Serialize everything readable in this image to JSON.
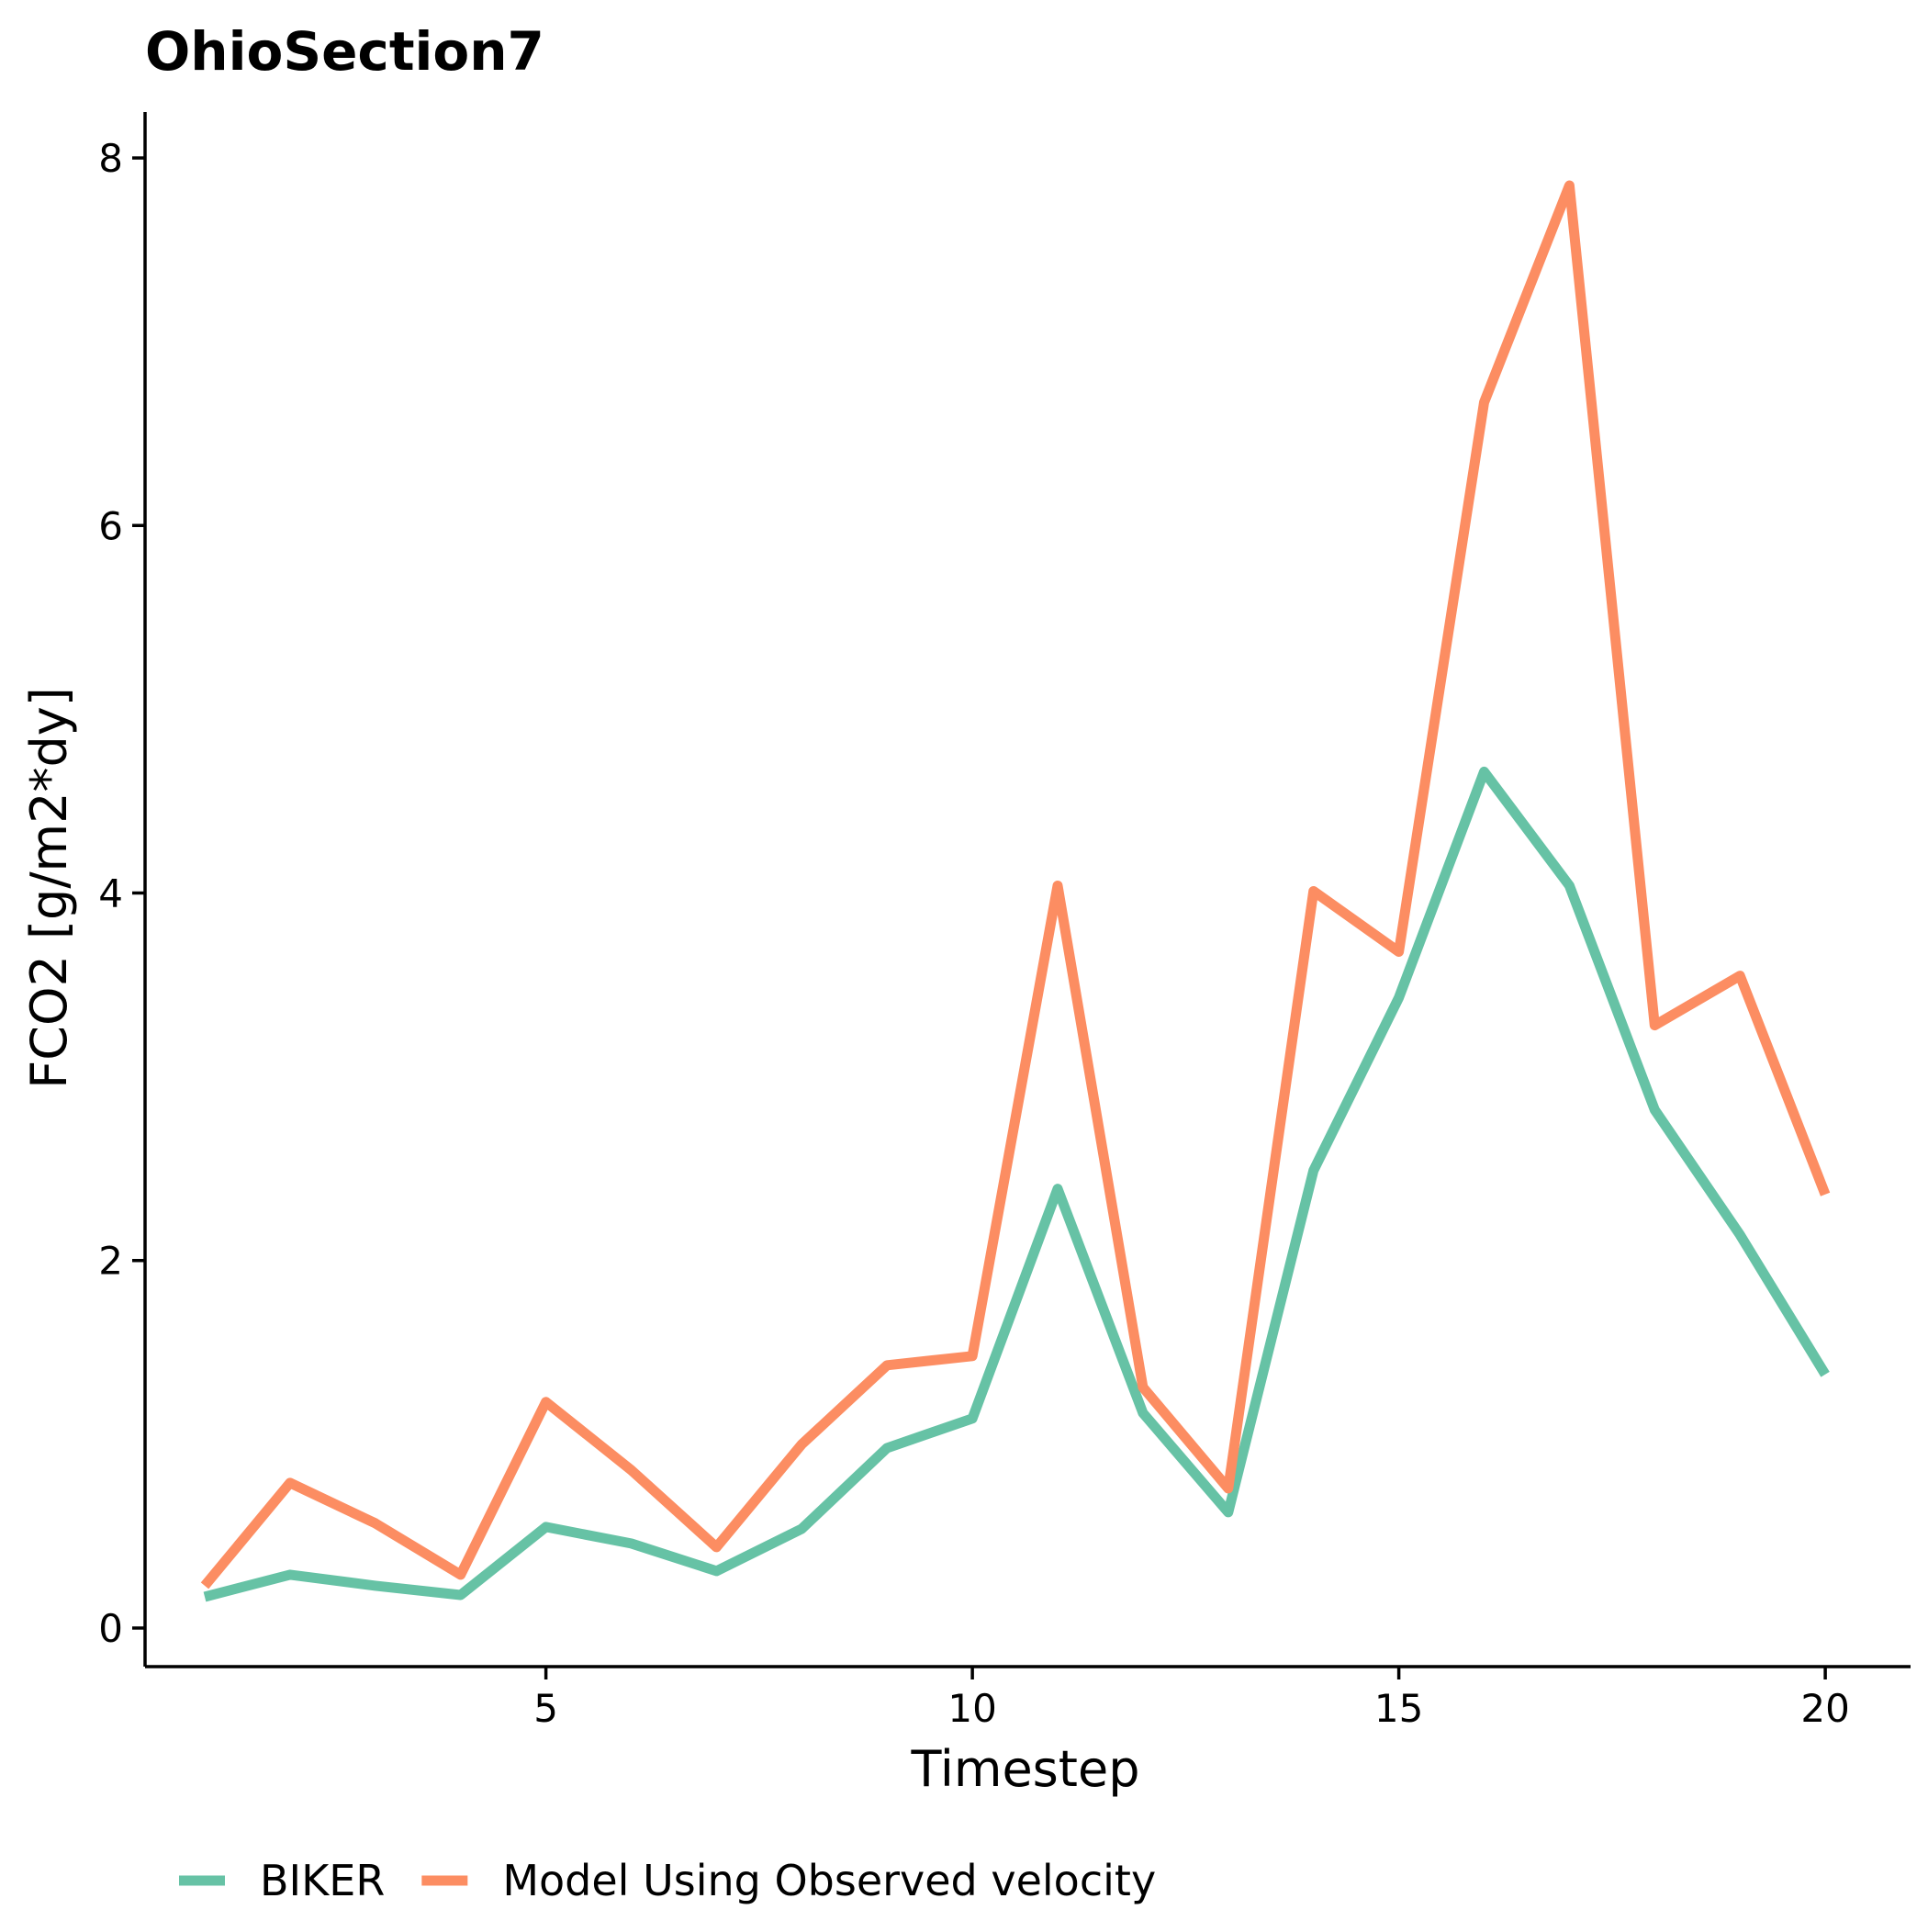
{
  "chart_data": {
    "type": "line",
    "title": "OhioSection7",
    "xlabel": "Timestep",
    "ylabel": "FCO2 [g/m2*dy]",
    "xlim": [
      0.3,
      21.0
    ],
    "ylim": [
      -0.21,
      8.25
    ],
    "xticks": [
      5,
      10,
      15,
      20
    ],
    "yticks": [
      0,
      2,
      4,
      6,
      8
    ],
    "xtick_labels": [
      "5",
      "10",
      "15",
      "20"
    ],
    "ytick_labels": [
      "0",
      "2",
      "4",
      "6",
      "8"
    ],
    "grid": false,
    "legend_position": "bottom-left",
    "x": [
      1,
      2,
      3,
      4,
      5,
      6,
      7,
      8,
      9,
      10,
      11,
      12,
      13,
      14,
      15,
      16,
      17,
      18,
      19,
      20
    ],
    "series": [
      {
        "name": "BIKER",
        "color": "#66c2a5",
        "values": [
          0.17,
          0.29,
          0.23,
          0.18,
          0.55,
          0.46,
          0.31,
          0.54,
          0.98,
          1.14,
          2.39,
          1.17,
          0.63,
          2.49,
          3.43,
          4.66,
          4.04,
          2.82,
          2.14,
          1.38
        ]
      },
      {
        "name": "Model Using Observed velocity",
        "color": "#fc8d62",
        "values": [
          0.23,
          0.79,
          0.57,
          0.29,
          1.23,
          0.86,
          0.44,
          1.0,
          1.43,
          1.48,
          4.04,
          1.31,
          0.76,
          4.01,
          3.68,
          6.67,
          7.85,
          3.28,
          3.55,
          2.36
        ]
      }
    ]
  }
}
